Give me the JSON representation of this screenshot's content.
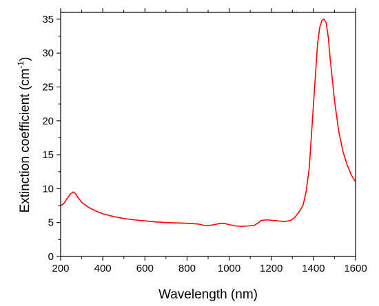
{
  "chart_data": {
    "type": "line",
    "title": "",
    "xlabel": "Wavelength (nm)",
    "ylabel": {
      "main": "Extinction coefficient (cm",
      "superscript": "-1",
      "close": ")"
    },
    "xlim": [
      200,
      1600
    ],
    "ylim": [
      0,
      36
    ],
    "x_ticks": [
      200,
      400,
      600,
      800,
      1000,
      1200,
      1400,
      1600
    ],
    "y_ticks": [
      0,
      5,
      10,
      15,
      20,
      25,
      30,
      35
    ],
    "grid": false,
    "legend": "none",
    "series": [
      {
        "color": "#ff0000",
        "x": [
          200,
          215,
          230,
          245,
          260,
          270,
          280,
          300,
          330,
          360,
          400,
          450,
          500,
          550,
          600,
          650,
          700,
          750,
          800,
          850,
          880,
          900,
          930,
          960,
          980,
          1000,
          1030,
          1060,
          1090,
          1120,
          1140,
          1150,
          1160,
          1180,
          1200,
          1230,
          1260,
          1290,
          1310,
          1330,
          1350,
          1365,
          1380,
          1395,
          1410,
          1420,
          1430,
          1440,
          1450,
          1460,
          1470,
          1480,
          1500,
          1520,
          1540,
          1560,
          1580,
          1600
        ],
        "y": [
          7.5,
          7.8,
          8.5,
          9.2,
          9.5,
          9.3,
          8.8,
          8.0,
          7.3,
          6.8,
          6.3,
          5.9,
          5.6,
          5.4,
          5.25,
          5.1,
          5.0,
          4.95,
          4.9,
          4.8,
          4.6,
          4.55,
          4.7,
          4.9,
          4.85,
          4.7,
          4.5,
          4.45,
          4.5,
          4.6,
          5.0,
          5.3,
          5.35,
          5.4,
          5.35,
          5.25,
          5.15,
          5.3,
          5.7,
          6.5,
          7.5,
          9.5,
          13.0,
          20.0,
          27.0,
          31.5,
          33.8,
          34.8,
          35.0,
          34.5,
          32.5,
          29.0,
          23.0,
          18.5,
          15.5,
          13.5,
          12.0,
          11.0
        ]
      }
    ]
  }
}
